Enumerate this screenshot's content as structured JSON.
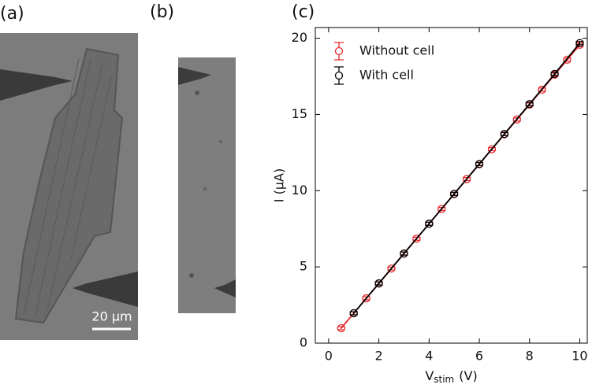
{
  "panel_labels": [
    "(a)",
    "(b)",
    "(c)"
  ],
  "scale_bar": "20 μm",
  "chart_data": {
    "type": "line",
    "xlabel": {
      "text": "V",
      "subscript": "stim",
      "suffix": "(V)"
    },
    "ylabel": "I (μA)",
    "xlim": [
      -0.53,
      10.3
    ],
    "ylim": [
      0,
      20.7
    ],
    "xticks": [
      0,
      2,
      4,
      6,
      8,
      10
    ],
    "yticks": [
      0,
      5,
      10,
      15,
      20
    ],
    "grid": false,
    "legend": "upper left",
    "series": [
      {
        "name": "Without cell",
        "color": "#e8272a",
        "x": [
          0.5,
          1,
          1.5,
          2,
          2.5,
          3,
          3.5,
          4,
          4.5,
          5,
          5.5,
          6,
          6.5,
          7,
          7.5,
          8,
          8.5,
          9,
          9.5,
          10
        ],
        "values": [
          0.98,
          1.96,
          2.94,
          3.91,
          4.89,
          5.87,
          6.85,
          7.83,
          8.8,
          9.78,
          10.76,
          11.74,
          12.72,
          13.7,
          14.67,
          15.65,
          16.63,
          17.61,
          18.59,
          19.57
        ],
        "errors": [
          0.1,
          0.1,
          0.1,
          0.1,
          0.1,
          0.1,
          0.1,
          0.1,
          0.1,
          0.1,
          0.1,
          0.1,
          0.1,
          0.1,
          0.1,
          0.1,
          0.1,
          0.1,
          0.1,
          0.1
        ]
      },
      {
        "name": "With cell",
        "color": "#000000",
        "x": [
          1,
          2,
          3,
          4,
          5,
          6,
          7,
          8,
          9,
          10
        ],
        "values": [
          1.96,
          3.92,
          5.88,
          7.83,
          9.79,
          11.75,
          13.72,
          15.68,
          17.66,
          19.68
        ],
        "errors": [
          0.1,
          0.1,
          0.1,
          0.1,
          0.1,
          0.1,
          0.1,
          0.1,
          0.1,
          0.1
        ]
      }
    ]
  }
}
